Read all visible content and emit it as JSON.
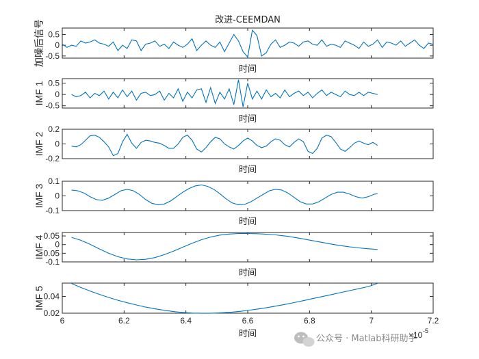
{
  "figure": {
    "title": "改进-CEEMDAN",
    "watermark": "公众号 · Matlab科研助手",
    "exponent_base": "×10",
    "exponent_power": "-5"
  },
  "chart_data": [
    {
      "type": "line",
      "ylabel": "加噪后信号",
      "xlabel": "时间",
      "xlim": [
        6.0,
        7.2
      ],
      "ylim": [
        -0.6,
        0.8
      ],
      "yticks": [
        -0.5,
        0,
        0.5
      ],
      "ytick_labels": [
        "-0.5",
        "0",
        "0.5"
      ],
      "x": [
        6.0,
        6.015,
        6.03,
        6.045,
        6.06,
        6.075,
        6.09,
        6.105,
        6.12,
        6.135,
        6.15,
        6.165,
        6.18,
        6.195,
        6.21,
        6.225,
        6.24,
        6.255,
        6.27,
        6.285,
        6.3,
        6.315,
        6.33,
        6.345,
        6.36,
        6.375,
        6.39,
        6.405,
        6.42,
        6.435,
        6.45,
        6.465,
        6.48,
        6.495,
        6.51,
        6.525,
        6.54,
        6.555,
        6.57,
        6.585,
        6.6,
        6.615,
        6.63,
        6.645,
        6.66,
        6.675,
        6.69,
        6.705,
        6.72,
        6.735,
        6.75,
        6.765,
        6.78,
        6.795,
        6.81,
        6.825,
        6.84,
        6.855,
        6.87,
        6.885,
        6.9,
        6.915,
        6.93,
        6.945,
        6.96,
        6.975,
        6.99,
        7.005,
        7.02,
        7.035,
        7.05,
        7.065,
        7.08,
        7.095,
        7.11,
        7.125,
        7.14,
        7.155,
        7.17,
        7.185,
        7.2
      ],
      "y": [
        0.05,
        -0.1,
        0.0,
        -0.05,
        0.2,
        0.1,
        0.15,
        0.25,
        0.1,
        0.05,
        -0.05,
        0.15,
        -0.25,
        0.0,
        -0.15,
        0.25,
        0.2,
        -0.25,
        0.05,
        0.1,
        0.2,
        -0.05,
        0.05,
        -0.15,
        0.15,
        0.0,
        -0.1,
        0.05,
        0.3,
        -0.25,
        0.0,
        0.2,
        0.0,
        -0.1,
        0.15,
        -0.3,
        0.1,
        0.5,
        0.2,
        -0.3,
        -0.55,
        0.7,
        0.45,
        -0.5,
        -0.35,
        0.05,
        0.25,
        -0.1,
        0.0,
        0.15,
        0.1,
        -0.05,
        0.15,
        0.2,
        0.05,
        0.0,
        0.25,
        -0.05,
        0.05,
        0.0,
        -0.1,
        0.2,
        0.1,
        0.0,
        -0.15,
        0.15,
        -0.05,
        0.05,
        0.25,
        -0.1,
        0.15,
        0.1,
        0.0,
        0.2,
        -0.05,
        0.1,
        0.25,
        0.0,
        -0.15,
        0.1,
        0.05
      ]
    },
    {
      "type": "line",
      "ylabel": "IMF 1",
      "xlabel": "时间",
      "xlim": [
        6.0,
        7.2
      ],
      "ylim": [
        -0.6,
        0.7
      ],
      "yticks": [
        -0.5,
        0,
        0.5
      ],
      "ytick_labels": [
        "-0.5",
        "0",
        "0.5"
      ],
      "x": [
        6.03,
        6.045,
        6.06,
        6.075,
        6.09,
        6.105,
        6.12,
        6.135,
        6.15,
        6.165,
        6.18,
        6.195,
        6.21,
        6.225,
        6.24,
        6.255,
        6.27,
        6.285,
        6.3,
        6.315,
        6.33,
        6.345,
        6.36,
        6.375,
        6.39,
        6.405,
        6.42,
        6.435,
        6.45,
        6.465,
        6.48,
        6.495,
        6.51,
        6.525,
        6.54,
        6.555,
        6.57,
        6.585,
        6.6,
        6.615,
        6.63,
        6.645,
        6.66,
        6.675,
        6.69,
        6.705,
        6.72,
        6.735,
        6.75,
        6.765,
        6.78,
        6.795,
        6.81,
        6.825,
        6.84,
        6.855,
        6.87,
        6.885,
        6.9,
        6.915,
        6.93,
        6.945,
        6.96,
        6.975,
        6.99,
        7.005,
        7.02
      ],
      "y": [
        0.0,
        -0.1,
        -0.05,
        0.1,
        -0.15,
        0.05,
        -0.05,
        0.15,
        -0.2,
        0.1,
        -0.15,
        0.2,
        -0.1,
        0.15,
        -0.25,
        0.05,
        0.1,
        -0.05,
        0.0,
        0.15,
        -0.25,
        0.05,
        -0.15,
        0.25,
        -0.3,
        0.1,
        -0.15,
        0.2,
        0.25,
        -0.35,
        0.3,
        -0.4,
        0.1,
        -0.2,
        0.25,
        -0.45,
        0.65,
        -0.55,
        0.5,
        -0.2,
        0.15,
        -0.2,
        0.2,
        -0.1,
        0.05,
        -0.15,
        0.2,
        -0.1,
        0.05,
        0.15,
        -0.05,
        0.1,
        -0.15,
        0.05,
        0.2,
        -0.05,
        0.1,
        0.0,
        -0.1,
        0.15,
        0.0,
        -0.05,
        0.1,
        -0.05,
        0.1,
        0.05,
        0.0
      ]
    },
    {
      "type": "line",
      "ylabel": "IMF 2",
      "xlabel": "时间",
      "xlim": [
        6.0,
        7.2
      ],
      "ylim": [
        -0.2,
        0.2
      ],
      "yticks": [
        -0.2,
        0,
        0.2
      ],
      "ytick_labels": [
        "-0.2",
        "0",
        "0.2"
      ],
      "x": [
        6.03,
        6.045,
        6.06,
        6.075,
        6.09,
        6.105,
        6.12,
        6.135,
        6.15,
        6.165,
        6.18,
        6.195,
        6.21,
        6.225,
        6.24,
        6.255,
        6.27,
        6.285,
        6.3,
        6.315,
        6.33,
        6.345,
        6.36,
        6.375,
        6.39,
        6.405,
        6.42,
        6.435,
        6.45,
        6.465,
        6.48,
        6.495,
        6.51,
        6.525,
        6.54,
        6.555,
        6.57,
        6.585,
        6.6,
        6.615,
        6.63,
        6.645,
        6.66,
        6.675,
        6.69,
        6.705,
        6.72,
        6.735,
        6.75,
        6.765,
        6.78,
        6.795,
        6.81,
        6.825,
        6.84,
        6.855,
        6.87,
        6.885,
        6.9,
        6.915,
        6.93,
        6.945,
        6.96,
        6.975,
        6.99,
        7.005,
        7.02
      ],
      "y": [
        -0.03,
        -0.04,
        -0.01,
        0.05,
        0.11,
        0.12,
        0.09,
        0.03,
        -0.04,
        -0.16,
        -0.13,
        0.03,
        0.13,
        0.01,
        -0.06,
        0.02,
        0.05,
        0.04,
        0.02,
        0.01,
        -0.02,
        -0.06,
        -0.06,
        0.0,
        0.09,
        0.12,
        0.05,
        -0.07,
        -0.11,
        -0.05,
        0.03,
        0.09,
        0.07,
        0.0,
        -0.04,
        -0.07,
        -0.02,
        0.04,
        0.08,
        0.04,
        -0.02,
        -0.05,
        -0.03,
        0.03,
        0.07,
        0.05,
        -0.01,
        -0.04,
        0.02,
        0.07,
        0.03,
        -0.1,
        -0.13,
        -0.06,
        0.08,
        0.12,
        0.1,
        0.02,
        -0.07,
        -0.1,
        -0.05,
        0.01,
        0.04,
        0.01,
        -0.01,
        0.02,
        -0.02
      ]
    },
    {
      "type": "line",
      "ylabel": "IMF 3",
      "xlabel": "时间",
      "xlim": [
        6.0,
        7.2
      ],
      "ylim": [
        -0.1,
        0.1
      ],
      "yticks": [
        -0.1,
        0,
        0.1
      ],
      "ytick_labels": [
        "-0.1",
        "0",
        "0.1"
      ],
      "x": [
        6.03,
        6.05,
        6.07,
        6.09,
        6.11,
        6.13,
        6.15,
        6.17,
        6.19,
        6.21,
        6.23,
        6.25,
        6.27,
        6.29,
        6.31,
        6.33,
        6.35,
        6.37,
        6.39,
        6.41,
        6.43,
        6.45,
        6.47,
        6.49,
        6.51,
        6.53,
        6.55,
        6.57,
        6.59,
        6.61,
        6.63,
        6.65,
        6.67,
        6.69,
        6.71,
        6.73,
        6.75,
        6.77,
        6.79,
        6.81,
        6.83,
        6.85,
        6.87,
        6.89,
        6.91,
        6.93,
        6.95,
        6.97,
        6.99,
        7.01,
        7.02
      ],
      "y": [
        0.04,
        0.035,
        0.02,
        -0.005,
        -0.025,
        -0.03,
        -0.015,
        0.01,
        0.035,
        0.045,
        0.035,
        0.01,
        -0.025,
        -0.05,
        -0.06,
        -0.055,
        -0.035,
        -0.005,
        0.025,
        0.05,
        0.068,
        0.075,
        0.065,
        0.045,
        0.015,
        -0.02,
        -0.048,
        -0.06,
        -0.058,
        -0.04,
        -0.015,
        0.01,
        0.035,
        0.045,
        0.04,
        0.02,
        -0.01,
        -0.04,
        -0.055,
        -0.055,
        -0.04,
        -0.015,
        0.01,
        0.025,
        0.025,
        0.012,
        -0.005,
        -0.015,
        -0.005,
        0.012,
        0.015
      ]
    },
    {
      "type": "line",
      "ylabel": "IMF 4",
      "xlabel": "时间",
      "xlim": [
        6.0,
        7.2
      ],
      "ylim": [
        -0.1,
        0.07
      ],
      "yticks": [
        -0.1,
        -0.05,
        0,
        0.05
      ],
      "ytick_labels": [
        "-0.1",
        "-0.05",
        "0",
        "0.05"
      ],
      "x": [
        6.03,
        6.06,
        6.09,
        6.12,
        6.15,
        6.18,
        6.21,
        6.24,
        6.27,
        6.3,
        6.33,
        6.36,
        6.39,
        6.42,
        6.45,
        6.48,
        6.51,
        6.54,
        6.57,
        6.6,
        6.63,
        6.66,
        6.69,
        6.72,
        6.75,
        6.78,
        6.81,
        6.84,
        6.87,
        6.9,
        6.93,
        6.96,
        6.99,
        7.02
      ],
      "y": [
        0.042,
        0.025,
        0.002,
        -0.025,
        -0.05,
        -0.07,
        -0.083,
        -0.088,
        -0.085,
        -0.075,
        -0.058,
        -0.038,
        -0.015,
        0.008,
        0.028,
        0.044,
        0.055,
        0.061,
        0.064,
        0.064,
        0.063,
        0.06,
        0.056,
        0.05,
        0.042,
        0.033,
        0.023,
        0.013,
        0.003,
        -0.006,
        -0.013,
        -0.019,
        -0.024,
        -0.028
      ]
    },
    {
      "type": "line",
      "ylabel": "IMF 5",
      "xlabel": "时间",
      "xlim": [
        6.0,
        7.2
      ],
      "ylim": [
        0.02,
        0.056
      ],
      "yticks": [
        0.02,
        0.04
      ],
      "ytick_labels": [
        "0.02",
        "0.04"
      ],
      "xticks": [
        6.0,
        6.2,
        6.4,
        6.6,
        6.8,
        7.0,
        7.2
      ],
      "xtick_labels": [
        "6",
        "6.2",
        "6.4",
        "6.6",
        "6.8",
        "7",
        "7.2"
      ],
      "x": [
        6.03,
        6.06,
        6.09,
        6.12,
        6.15,
        6.18,
        6.21,
        6.24,
        6.27,
        6.3,
        6.33,
        6.36,
        6.39,
        6.42,
        6.45,
        6.48,
        6.51,
        6.54,
        6.57,
        6.6,
        6.63,
        6.66,
        6.69,
        6.72,
        6.75,
        6.78,
        6.81,
        6.84,
        6.87,
        6.9,
        6.93,
        6.96,
        6.99,
        7.02
      ],
      "y": [
        0.0555,
        0.0508,
        0.0465,
        0.0425,
        0.0388,
        0.0355,
        0.0325,
        0.0298,
        0.0273,
        0.0252,
        0.0234,
        0.022,
        0.0209,
        0.0202,
        0.0199,
        0.0199,
        0.0203,
        0.021,
        0.022,
        0.0233,
        0.0248,
        0.0265,
        0.0284,
        0.0305,
        0.0327,
        0.035,
        0.0374,
        0.0398,
        0.0422,
        0.0446,
        0.047,
        0.0494,
        0.0518,
        0.0557
      ]
    }
  ]
}
